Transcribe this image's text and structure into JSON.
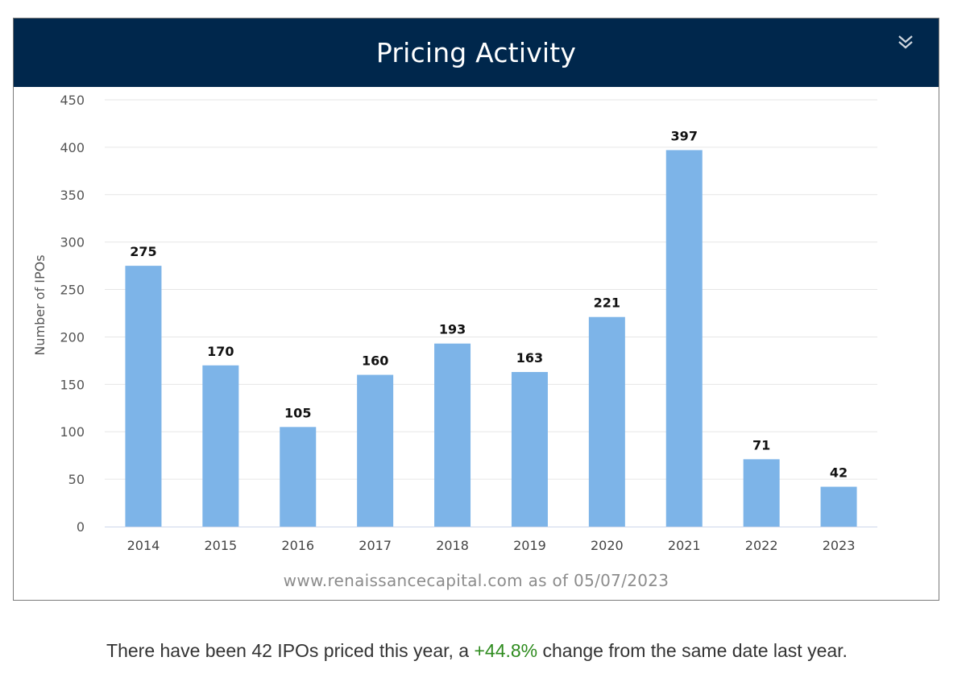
{
  "card": {
    "title": "Pricing Activity",
    "source": "www.renaissancecapital.com as of 05/07/2023",
    "menu_icon": "double-chevron-down-icon"
  },
  "summary": {
    "before": "There have been 42 IPOs priced this year, a ",
    "change": "+44.8%",
    "after": " change from the same date last year."
  },
  "colors": {
    "header_bg": "#00274c",
    "bar": "#7db4e8",
    "positive_change": "#2e8b1e"
  },
  "chart_data": {
    "type": "bar",
    "title": "Pricing Activity",
    "xlabel": "",
    "ylabel": "Number of IPOs",
    "categories": [
      "2014",
      "2015",
      "2016",
      "2017",
      "2018",
      "2019",
      "2020",
      "2021",
      "2022",
      "2023"
    ],
    "values": [
      275,
      170,
      105,
      160,
      193,
      163,
      221,
      397,
      71,
      42
    ],
    "ylim": [
      0,
      450
    ],
    "yticks": [
      0,
      50,
      100,
      150,
      200,
      250,
      300,
      350,
      400,
      450
    ],
    "grid": true,
    "legend": "none",
    "data_labels": true
  }
}
